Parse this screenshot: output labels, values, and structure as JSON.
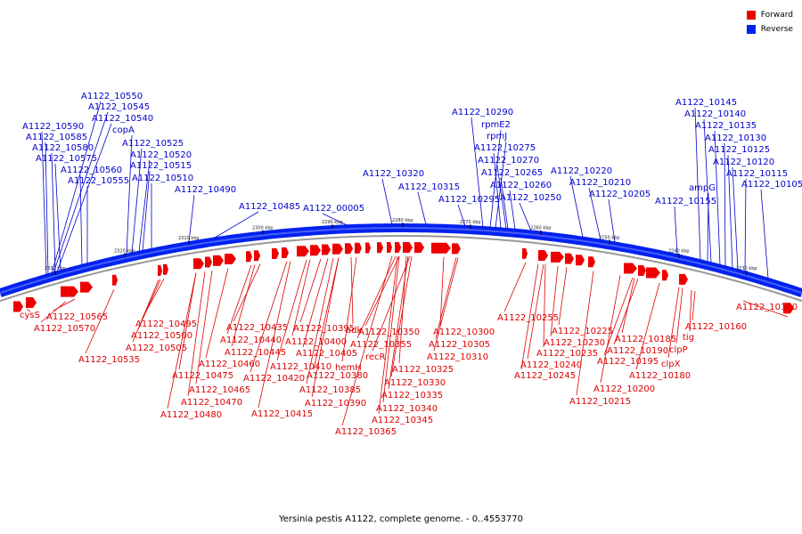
{
  "legend": [
    {
      "label": "Forward",
      "color": "#ee0000"
    },
    {
      "label": "Reverse",
      "color": "#0022ee"
    }
  ],
  "caption": "Yersinia pestis A1122, complete genome. - 0..4553770",
  "colors": {
    "forward": "#ee0000",
    "reverse": "#0022ee",
    "backbone": "#0022ee"
  },
  "ticks": [
    "2330 kbp",
    "2320 kbp",
    "2310 kbp",
    "2300 kbp",
    "2290 kbp",
    "2280 kbp",
    "2270 kbp",
    "2260 kbp",
    "2250 kbp",
    "2240 kbp",
    "2230 kbp"
  ],
  "reverse_labels": [
    "A1122_10550",
    "A1122_10545",
    "A1122_10540",
    "A1122_10590",
    "A1122_10585",
    "copA",
    "A1122_10580",
    "A1122_10525",
    "A1122_10575",
    "A1122_10520",
    "A1122_10560",
    "A1122_10515",
    "A1122_10555",
    "A1122_10510",
    "A1122_10490",
    "A1122_10485",
    "A1122_00005",
    "A1122_10320",
    "A1122_10315",
    "A1122_10290",
    "rpmE2",
    "rpmJ",
    "A1122_10275",
    "A1122_10270",
    "A1122_10265",
    "A1122_10260",
    "A1122_10295",
    "A1122_10250",
    "A1122_10220",
    "A1122_10210",
    "A1122_10205",
    "A1122_10145",
    "A1122_10140",
    "A1122_10135",
    "A1122_10130",
    "A1122_10125",
    "A1122_10120",
    "ampG",
    "A1122_10115",
    "A1122_10105",
    "A1122_10155"
  ],
  "forward_labels": [
    "cysS",
    "A1122_10565",
    "A1122_10570",
    "A1122_10495",
    "A1122_10500",
    "A1122_10505",
    "A1122_10535",
    "A1122_10435",
    "A1122_10440",
    "A1122_10445",
    "A1122_10460",
    "A1122_10475",
    "A1122_10465",
    "A1122_10470",
    "A1122_10480",
    "A1122_10395",
    "A1122_10400",
    "A1122_10405",
    "A1122_10410",
    "A1122_10420",
    "A1122_10415",
    "adk",
    "hemH",
    "A1122_10380",
    "A1122_10385",
    "A1122_10390",
    "A1122_10350",
    "A1122_10355",
    "recR",
    "A1122_10365",
    "A1122_10325",
    "A1122_10330",
    "A1122_10335",
    "A1122_10340",
    "A1122_10345",
    "A1122_10300",
    "A1122_10305",
    "A1122_10310",
    "A1122_10255",
    "A1122_10225",
    "A1122_10230",
    "A1122_10235",
    "A1122_10240",
    "A1122_10245",
    "A1122_10215",
    "A1122_10200",
    "A1122_10185",
    "A1122_10190",
    "A1122_10195",
    "A1122_10180",
    "clpX",
    "clpP",
    "tig",
    "A1122_10160",
    "A1122_10110"
  ]
}
